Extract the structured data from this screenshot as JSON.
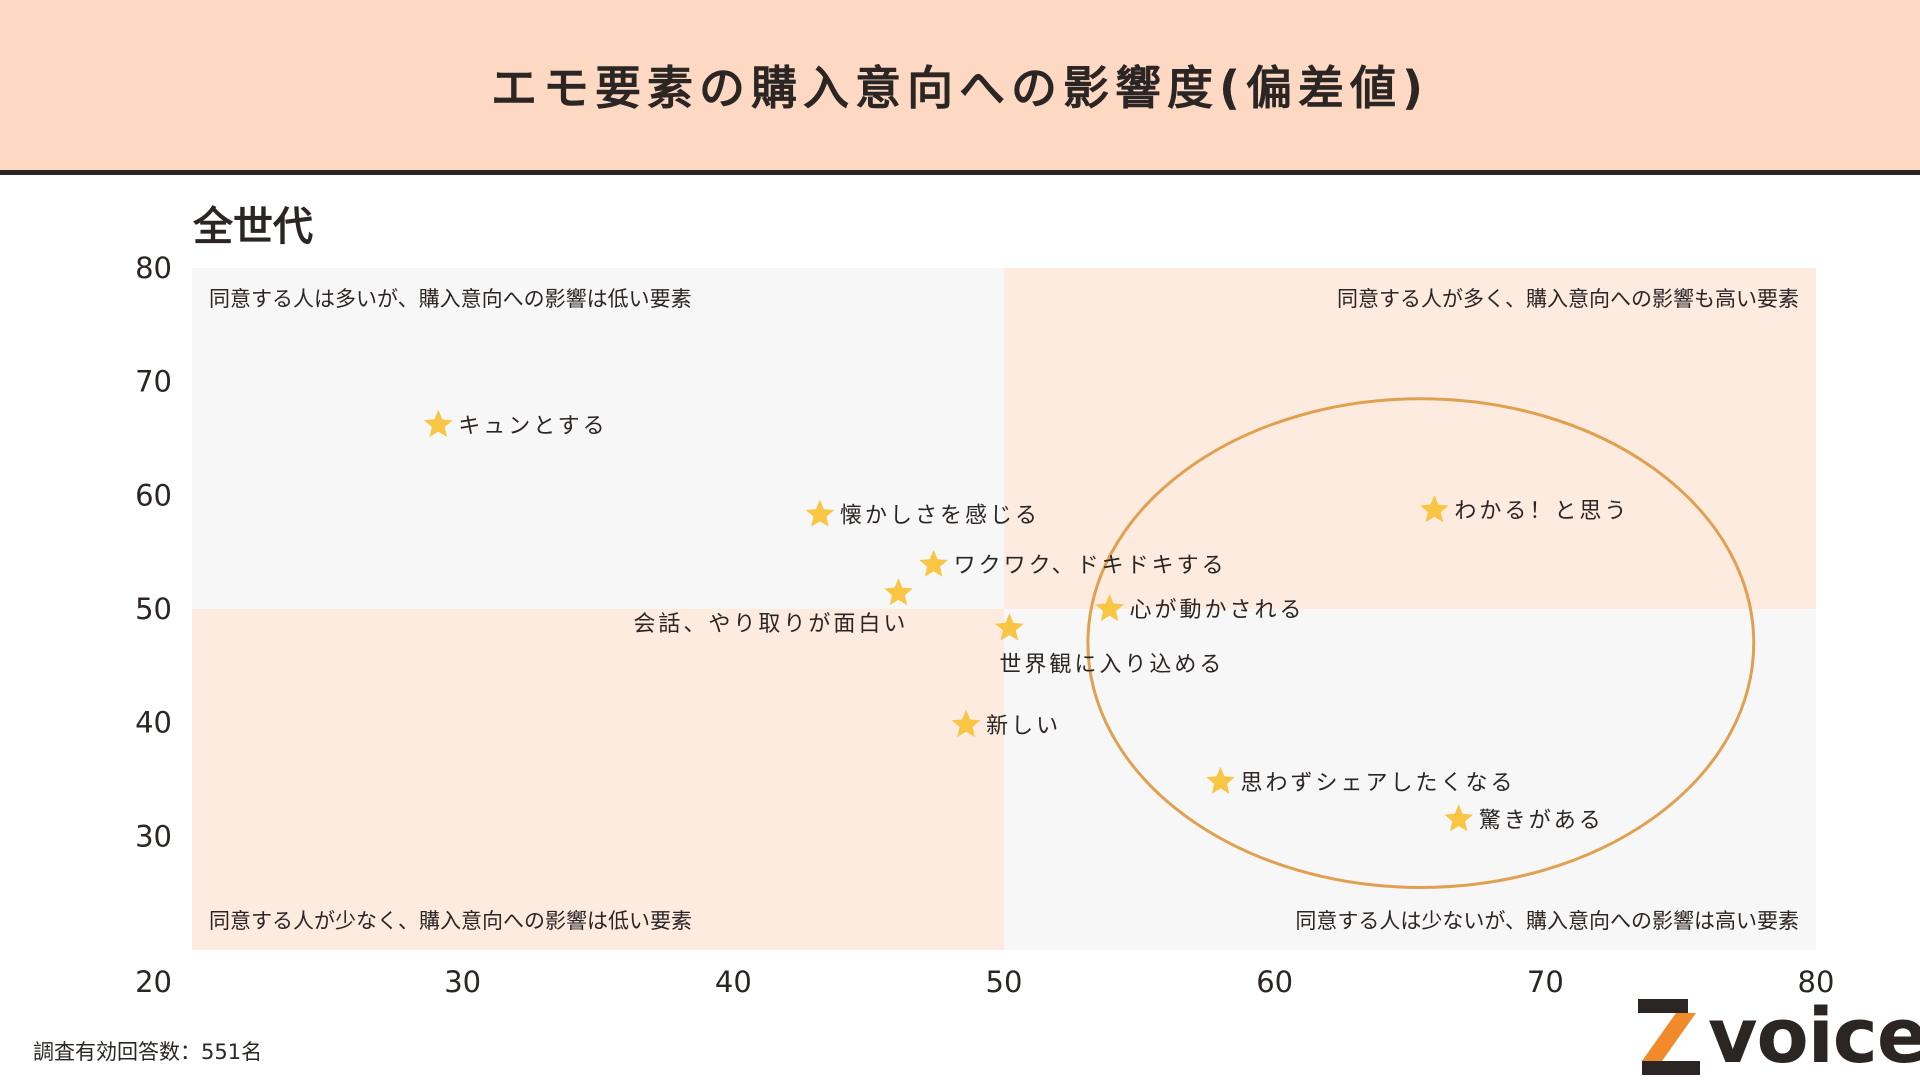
{
  "header": {
    "title": "エモ要素の購入意向への影響度(偏差値)"
  },
  "colors": {
    "header_bg": "#fdd9c4",
    "quadrant_peach": "#fdebe0",
    "quadrant_grey": "#f7f7f7",
    "star": "#f8c545",
    "ellipse": "#e0a050",
    "text": "#2b2623",
    "logo_accent": "#f08a2a"
  },
  "chart_data": {
    "type": "scatter",
    "title": "エモ要素の購入意向への影響度(偏差値)",
    "subtitle": "全世代",
    "xlim": [
      20,
      80
    ],
    "ylim": [
      20,
      80
    ],
    "x_ticks": [
      30,
      40,
      50,
      60,
      70,
      80
    ],
    "y_ticks": [
      80,
      70,
      60,
      50,
      40,
      30
    ],
    "origin_label": "20",
    "divider": {
      "x": 50,
      "y": 50
    },
    "marker": "star-icon",
    "quadrants": {
      "top_left": "同意する人は多いが、購入意向への影響は低い要素",
      "top_right": "同意する人が多く、購入意向への影響も高い要素",
      "bottom_left": "同意する人が少なく、購入意向への影響は低い要素",
      "bottom_right": "同意する人は少ないが、購入意向への影響は高い要素"
    },
    "points": [
      {
        "label": "キュンとする",
        "x": 29.1,
        "y": 66.2,
        "label_pos": "right"
      },
      {
        "label": "懐かしさを感じる",
        "x": 43.2,
        "y": 58.3,
        "label_pos": "right"
      },
      {
        "label": "ワクワク、ドキドキする",
        "x": 47.4,
        "y": 53.9,
        "label_pos": "right"
      },
      {
        "label": "会話、やり取りが面白い",
        "x": 46.1,
        "y": 51.4,
        "label_pos": "below-left"
      },
      {
        "label": "世界観に入り込める",
        "x": 50.2,
        "y": 48.3,
        "label_pos": "below"
      },
      {
        "label": "心が動かされる",
        "x": 53.9,
        "y": 50.0,
        "label_pos": "right"
      },
      {
        "label": "わかる！と思う",
        "x": 65.9,
        "y": 58.7,
        "label_pos": "right"
      },
      {
        "label": "新しい",
        "x": 48.6,
        "y": 39.8,
        "label_pos": "right"
      },
      {
        "label": "思わずシェアしたくなる",
        "x": 58.0,
        "y": 34.8,
        "label_pos": "right"
      },
      {
        "label": "驚きがある",
        "x": 66.8,
        "y": 31.5,
        "label_pos": "right"
      }
    ],
    "highlight_ellipse": {
      "cx": 65.4,
      "cy": 47.0,
      "rx": 12.3,
      "ry": 21.5
    }
  },
  "footnote": "調査有効回答数：551名",
  "logo": {
    "text": "voice",
    "mark": "Z"
  }
}
